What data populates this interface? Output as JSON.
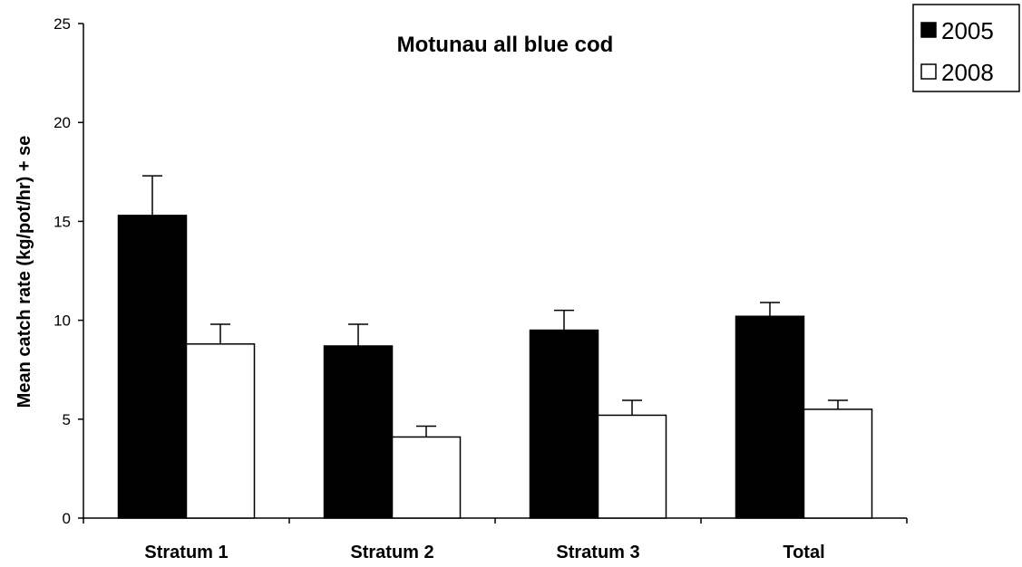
{
  "chart_data": {
    "type": "bar",
    "title": "Motunau all blue cod",
    "xlabel": "",
    "ylabel": "Mean catch rate (kg/pot/hr) + se",
    "categories": [
      "Stratum 1",
      "Stratum 2",
      "Stratum 3",
      "Total"
    ],
    "ylim": [
      0,
      25
    ],
    "yticks": [
      0,
      5,
      10,
      15,
      20,
      25
    ],
    "grid": false,
    "legend_position": "top-right",
    "series": [
      {
        "name": "2005",
        "color": "#000000",
        "values": [
          15.3,
          8.7,
          9.5,
          10.2
        ],
        "errors": [
          2.0,
          1.1,
          1.0,
          0.7
        ]
      },
      {
        "name": "2008",
        "color": "#ffffff",
        "values": [
          8.8,
          4.1,
          5.2,
          5.5
        ],
        "errors": [
          1.0,
          0.55,
          0.75,
          0.45
        ]
      }
    ]
  }
}
